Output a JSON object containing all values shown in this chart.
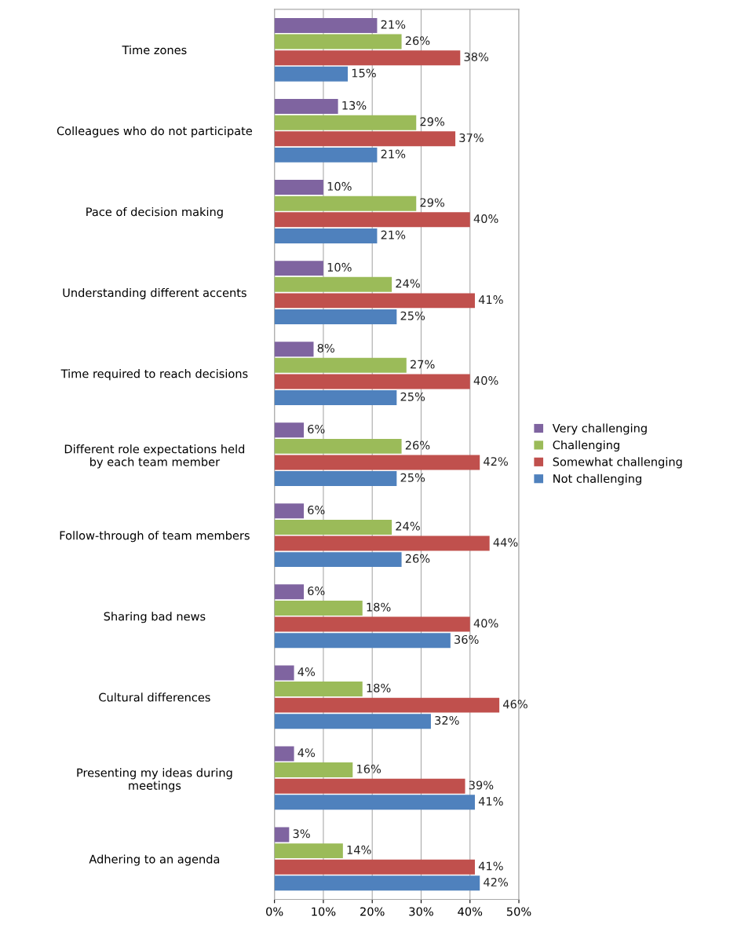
{
  "chart_data": {
    "type": "bar",
    "orientation": "horizontal",
    "categories": [
      "Time zones",
      "Colleagues who do not participate",
      "Pace of decision making",
      "Understanding different accents",
      "Time required to reach decisions",
      "Different role expectations held\nby each team member",
      "Follow-through of team members",
      "Sharing bad news",
      "Cultural differences",
      "Presenting my ideas during\nmeetings",
      "Adhering to an agenda"
    ],
    "series": [
      {
        "name": "Very challenging",
        "color": "#7f64a0",
        "values": [
          21,
          13,
          10,
          10,
          8,
          6,
          6,
          6,
          4,
          4,
          3
        ],
        "value_labels": [
          "21%",
          "13%",
          "10%",
          "10%",
          "8%",
          "6%",
          "6%",
          "6%",
          "4%",
          "4%",
          "3%"
        ]
      },
      {
        "name": "Challenging",
        "color": "#9bbb59",
        "values": [
          26,
          29,
          29,
          24,
          27,
          26,
          24,
          18,
          18,
          16,
          14
        ],
        "value_labels": [
          "26%",
          "29%",
          "29%",
          "24%",
          "27%",
          "26%",
          "24%",
          "18%",
          "18%",
          "16%",
          "14%"
        ]
      },
      {
        "name": "Somewhat challenging",
        "color": "#c0504d",
        "values": [
          38,
          37,
          40,
          41,
          40,
          42,
          44,
          40,
          46,
          39,
          41
        ],
        "value_labels": [
          "38%",
          "37%",
          "40%",
          "41%",
          "40%",
          "42%",
          "44%",
          "40%",
          "46%",
          "39%",
          "41%"
        ]
      },
      {
        "name": "Not challenging",
        "color": "#4f81bd",
        "values": [
          15,
          21,
          21,
          25,
          25,
          25,
          26,
          36,
          32,
          41,
          42
        ],
        "value_labels": [
          "15%",
          "21%",
          "21%",
          "25%",
          "25%",
          "25%",
          "26%",
          "36%",
          "32%",
          "41%",
          "42%"
        ]
      }
    ],
    "xlim": [
      0,
      50
    ],
    "xticks": [
      {
        "value": 0,
        "label": "0%"
      },
      {
        "value": 10,
        "label": "10%"
      },
      {
        "value": 20,
        "label": "20%"
      },
      {
        "value": 30,
        "label": "30%"
      },
      {
        "value": 40,
        "label": "40%"
      },
      {
        "value": 50,
        "label": "50%"
      }
    ],
    "grid": "x",
    "legend": "right"
  }
}
